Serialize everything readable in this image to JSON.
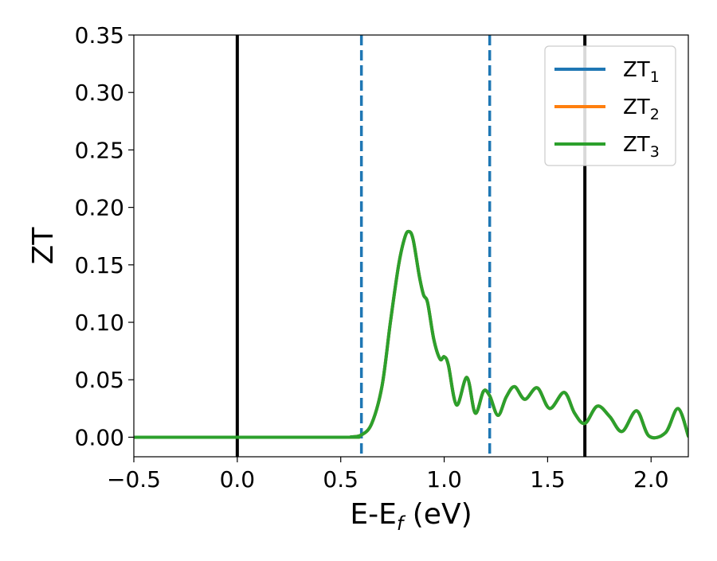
{
  "chart_data": {
    "type": "line",
    "title": "",
    "xlabel": "E-E",
    "xlabel_sub": "f",
    "xlabel_unit": " (eV)",
    "ylabel": "ZT",
    "xlim": [
      -0.5,
      2.18
    ],
    "ylim": [
      -0.017,
      0.35
    ],
    "x_ticks": [
      -0.5,
      0.0,
      0.5,
      1.0,
      1.5,
      2.0
    ],
    "x_tick_labels": [
      "−0.5",
      "0.0",
      "0.5",
      "1.0",
      "1.5",
      "2.0"
    ],
    "y_ticks": [
      0.0,
      0.05,
      0.1,
      0.15,
      0.2,
      0.25,
      0.3,
      0.35
    ],
    "y_tick_labels": [
      "0.00",
      "0.05",
      "0.10",
      "0.15",
      "0.20",
      "0.25",
      "0.30",
      "0.35"
    ],
    "grid": false,
    "legend_position": "top-right",
    "vlines": [
      {
        "x": 0.0,
        "style": "solid",
        "color": "#000000"
      },
      {
        "x": 1.68,
        "style": "solid",
        "color": "#000000"
      },
      {
        "x": 0.6,
        "style": "dashed",
        "color": "#1f77b4"
      },
      {
        "x": 1.22,
        "style": "dashed",
        "color": "#1f77b4"
      }
    ],
    "x": [
      -0.5,
      0.5,
      0.55,
      0.6,
      0.65,
      0.7,
      0.74,
      0.78,
      0.81,
      0.83,
      0.85,
      0.88,
      0.9,
      0.92,
      0.95,
      0.98,
      1.0,
      1.02,
      1.06,
      1.11,
      1.15,
      1.19,
      1.22,
      1.26,
      1.3,
      1.34,
      1.39,
      1.45,
      1.51,
      1.58,
      1.63,
      1.68,
      1.74,
      1.8,
      1.86,
      1.93,
      1.99,
      2.07,
      2.13,
      2.18
    ],
    "series": [
      {
        "name": "ZT",
        "sub": "1",
        "color": "#1f77b4",
        "values": [
          0.0,
          0.0,
          0.0003,
          0.002,
          0.012,
          0.045,
          0.1,
          0.15,
          0.174,
          0.179,
          0.172,
          0.14,
          0.124,
          0.117,
          0.085,
          0.068,
          0.07,
          0.063,
          0.028,
          0.052,
          0.021,
          0.04,
          0.036,
          0.019,
          0.035,
          0.044,
          0.033,
          0.043,
          0.025,
          0.039,
          0.021,
          0.012,
          0.027,
          0.018,
          0.005,
          0.023,
          0.001,
          0.004,
          0.025,
          0.001
        ]
      },
      {
        "name": "ZT",
        "sub": "2",
        "color": "#ff7f0e",
        "values": [
          0.0,
          0.0,
          0.0003,
          0.002,
          0.012,
          0.045,
          0.1,
          0.15,
          0.174,
          0.179,
          0.172,
          0.14,
          0.124,
          0.117,
          0.085,
          0.068,
          0.07,
          0.063,
          0.028,
          0.052,
          0.021,
          0.04,
          0.036,
          0.019,
          0.035,
          0.044,
          0.033,
          0.043,
          0.025,
          0.039,
          0.021,
          0.012,
          0.027,
          0.018,
          0.005,
          0.023,
          0.001,
          0.004,
          0.025,
          0.001
        ]
      },
      {
        "name": "ZT",
        "sub": "3",
        "color": "#2ca02c",
        "values": [
          0.0,
          0.0,
          0.0003,
          0.002,
          0.012,
          0.045,
          0.1,
          0.15,
          0.174,
          0.179,
          0.172,
          0.14,
          0.124,
          0.117,
          0.085,
          0.068,
          0.07,
          0.063,
          0.028,
          0.052,
          0.021,
          0.04,
          0.036,
          0.019,
          0.035,
          0.044,
          0.033,
          0.043,
          0.025,
          0.039,
          0.021,
          0.012,
          0.027,
          0.018,
          0.005,
          0.023,
          0.001,
          0.004,
          0.025,
          0.001
        ]
      }
    ]
  }
}
